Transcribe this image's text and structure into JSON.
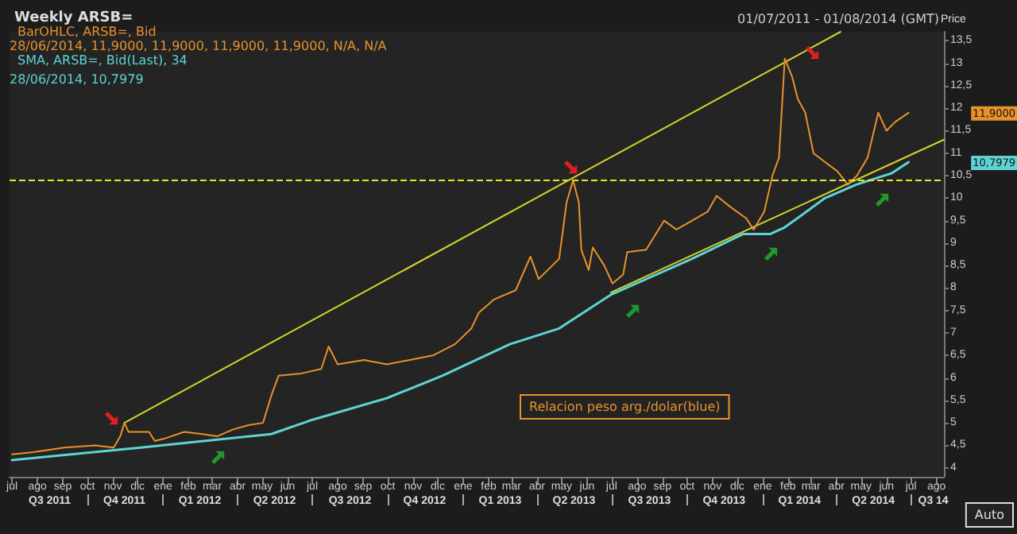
{
  "chart_data": {
    "type": "line",
    "title": "Weekly ARSB=",
    "subtitle": "01/07/2011 - 01/08/2014 (GMT)",
    "ylabel": "Price",
    "legend": "top left",
    "grid": false,
    "marker": "none",
    "xlim": [
      "2011-06-28",
      "2014-08-10"
    ],
    "xticks": [
      {
        "value": "2011-07-01",
        "label": "jul"
      },
      {
        "value": "2011-08-01",
        "label": "ago"
      },
      {
        "value": "2011-09-01",
        "label": "sep"
      },
      {
        "value": "2011-10-01",
        "label": "oct"
      },
      {
        "value": "2011-11-01",
        "label": "nov"
      },
      {
        "value": "2011-12-01",
        "label": "dic"
      },
      {
        "value": "2012-01-01",
        "label": "ene"
      },
      {
        "value": "2012-02-01",
        "label": "feb"
      },
      {
        "value": "2012-03-01",
        "label": "mar"
      },
      {
        "value": "2012-04-01",
        "label": "abr"
      },
      {
        "value": "2012-05-01",
        "label": "may"
      },
      {
        "value": "2012-06-01",
        "label": "jun"
      },
      {
        "value": "2012-07-01",
        "label": "jul"
      },
      {
        "value": "2012-08-01",
        "label": "ago"
      },
      {
        "value": "2012-09-01",
        "label": "sep"
      },
      {
        "value": "2012-10-01",
        "label": "oct"
      },
      {
        "value": "2012-11-01",
        "label": "nov"
      },
      {
        "value": "2012-12-01",
        "label": "dic"
      },
      {
        "value": "2013-01-01",
        "label": "ene"
      },
      {
        "value": "2013-02-01",
        "label": "feb"
      },
      {
        "value": "2013-03-01",
        "label": "mar"
      },
      {
        "value": "2013-04-01",
        "label": "abr"
      },
      {
        "value": "2013-05-01",
        "label": "may"
      },
      {
        "value": "2013-06-01",
        "label": "jun"
      },
      {
        "value": "2013-07-01",
        "label": "jul"
      },
      {
        "value": "2013-08-01",
        "label": "ago"
      },
      {
        "value": "2013-09-01",
        "label": "sep"
      },
      {
        "value": "2013-10-01",
        "label": "oct"
      },
      {
        "value": "2013-11-01",
        "label": "nov"
      },
      {
        "value": "2013-12-01",
        "label": "dic"
      },
      {
        "value": "2014-01-01",
        "label": "ene"
      },
      {
        "value": "2014-02-01",
        "label": "feb"
      },
      {
        "value": "2014-03-01",
        "label": "mar"
      },
      {
        "value": "2014-04-01",
        "label": "abr"
      },
      {
        "value": "2014-05-01",
        "label": "may"
      },
      {
        "value": "2014-06-01",
        "label": "jun"
      },
      {
        "value": "2014-07-01",
        "label": "jul"
      },
      {
        "value": "2014-08-01",
        "label": "ago"
      }
    ],
    "x2lim": [
      "2011-06-28",
      "2014-08-10"
    ],
    "x2ticks": [
      {
        "value": "2011-08-16",
        "label": "Q3 2011"
      },
      {
        "value": "2011-10-01",
        "label": null
      },
      {
        "value": "2011-11-15",
        "label": "Q4 2011"
      },
      {
        "value": "2012-01-01",
        "label": null
      },
      {
        "value": "2012-02-15",
        "label": "Q1 2012"
      },
      {
        "value": "2012-04-01",
        "label": null
      },
      {
        "value": "2012-05-16",
        "label": "Q2 2012"
      },
      {
        "value": "2012-07-01",
        "label": null
      },
      {
        "value": "2012-08-16",
        "label": "Q3 2012"
      },
      {
        "value": "2012-10-01",
        "label": null
      },
      {
        "value": "2012-11-15",
        "label": "Q4 2012"
      },
      {
        "value": "2013-01-01",
        "label": null
      },
      {
        "value": "2013-02-15",
        "label": "Q1 2013"
      },
      {
        "value": "2013-04-01",
        "label": null
      },
      {
        "value": "2013-05-16",
        "label": "Q2 2013"
      },
      {
        "value": "2013-07-01",
        "label": null
      },
      {
        "value": "2013-08-16",
        "label": "Q3 2013"
      },
      {
        "value": "2013-10-01",
        "label": null
      },
      {
        "value": "2013-11-15",
        "label": "Q4 2013"
      },
      {
        "value": "2014-01-01",
        "label": null
      },
      {
        "value": "2014-02-15",
        "label": "Q1 2014"
      },
      {
        "value": "2014-04-01",
        "label": null
      },
      {
        "value": "2014-05-16",
        "label": "Q2 2014"
      },
      {
        "value": "2014-07-01",
        "label": null
      },
      {
        "value": "2014-07-28",
        "label": "Q3 14"
      }
    ],
    "ylim": [
      3.8,
      13.7
    ],
    "yticks": [
      4,
      {
        "value": 4.5,
        "label": "4,5"
      },
      5,
      {
        "value": 5.5,
        "label": "5,5"
      },
      6,
      {
        "value": 6.5,
        "label": "6,5"
      },
      7,
      {
        "value": 7.5,
        "label": "7,5"
      },
      8,
      {
        "value": 8.5,
        "label": "8,5"
      },
      9,
      {
        "value": 9.5,
        "label": "9,5"
      },
      10,
      {
        "value": 10.5,
        "label": "10,5"
      },
      11,
      {
        "value": 11.5,
        "label": "11,5"
      },
      12,
      {
        "value": 12.5,
        "label": "12,5"
      },
      13,
      {
        "value": 13.5,
        "label": "13,5"
      }
    ],
    "series": [
      {
        "name": "BarOHLC, ARSB=, Bid",
        "color": "#e8922a",
        "x": [
          "2011-07-01",
          "2011-07-27",
          "2011-09-03",
          "2011-10-10",
          "2011-11-02",
          "2011-11-10",
          "2011-11-15",
          "2011-11-20",
          "2011-12-15",
          "2011-12-22",
          "2012-01-03",
          "2012-01-27",
          "2012-02-18",
          "2012-03-07",
          "2012-03-26",
          "2012-04-14",
          "2012-05-02",
          "2012-05-12",
          "2012-05-21",
          "2012-06-18",
          "2012-07-12",
          "2012-07-21",
          "2012-08-01",
          "2012-09-02",
          "2012-09-30",
          "2012-10-28",
          "2012-11-25",
          "2012-12-22",
          "2013-01-11",
          "2013-01-20",
          "2013-02-08",
          "2013-03-06",
          "2013-03-24",
          "2013-04-03",
          "2013-04-28",
          "2013-05-07",
          "2013-05-15",
          "2013-05-22",
          "2013-05-25",
          "2013-06-03",
          "2013-06-08",
          "2013-06-22",
          "2013-07-02",
          "2013-07-15",
          "2013-07-20",
          "2013-08-12",
          "2013-09-03",
          "2013-09-18",
          "2013-10-07",
          "2013-10-26",
          "2013-11-06",
          "2013-11-23",
          "2013-12-12",
          "2013-12-21",
          "2014-01-03",
          "2014-01-13",
          "2014-01-21",
          "2014-01-28",
          "2014-02-06",
          "2014-02-13",
          "2014-02-22",
          "2014-03-04",
          "2014-03-18",
          "2014-04-02",
          "2014-04-15",
          "2014-04-26",
          "2014-05-09",
          "2014-05-22",
          "2014-06-01",
          "2014-06-12",
          "2014-06-28"
        ],
        "values": [
          4.3,
          4.35,
          4.45,
          4.5,
          4.45,
          4.7,
          5.0,
          4.8,
          4.8,
          4.6,
          4.65,
          4.8,
          4.75,
          4.7,
          4.85,
          4.95,
          5.0,
          5.6,
          6.05,
          6.1,
          6.2,
          6.7,
          6.3,
          6.4,
          6.3,
          6.4,
          6.5,
          6.75,
          7.1,
          7.45,
          7.75,
          7.95,
          8.7,
          8.2,
          8.65,
          9.9,
          10.4,
          9.9,
          8.85,
          8.4,
          8.9,
          8.5,
          8.1,
          8.3,
          8.8,
          8.85,
          9.5,
          9.3,
          9.5,
          9.7,
          10.05,
          9.8,
          9.55,
          9.3,
          9.7,
          10.5,
          10.9,
          13.1,
          12.7,
          12.2,
          11.9,
          11.0,
          10.8,
          10.6,
          10.3,
          10.5,
          10.9,
          11.9,
          11.5,
          11.7,
          11.9
        ]
      },
      {
        "name": "SMA, ARSB=, Bid(Last), 34",
        "color": "#5fd3d3",
        "x": [
          "2011-07-01",
          "2011-12-05",
          "2012-05-12",
          "2012-06-28",
          "2012-09-30",
          "2012-12-07",
          "2013-02-27",
          "2013-04-28",
          "2013-06-30",
          "2013-10-07",
          "2013-12-08",
          "2014-01-10",
          "2014-01-28",
          "2014-02-16",
          "2014-03-18",
          "2014-04-25",
          "2014-06-07",
          "2014-06-28"
        ],
        "values": [
          4.17,
          4.45,
          4.75,
          5.05,
          5.55,
          6.05,
          6.75,
          7.1,
          7.85,
          8.65,
          9.2,
          9.2,
          9.35,
          9.6,
          10.0,
          10.3,
          10.55,
          10.8
        ]
      },
      {
        "color": "#d4d42a",
        "x": [
          "2011-11-15",
          "2014-04-06"
        ],
        "values": [
          5.0,
          13.7
        ]
      },
      {
        "color": "#d4d42a",
        "x": [
          "2013-06-30",
          "2014-08-10"
        ],
        "values": [
          7.9,
          11.3
        ]
      }
    ],
    "ref_lines": [
      {
        "axis": "y",
        "value": 10.4,
        "color": "#e6e62e",
        "line_style": "dashed"
      }
    ],
    "annotations": [
      "28/06/2014, 11,9000, 11,9000, 11,9000, 11,9000, N/A, N/A",
      "28/06/2014, 10,7979",
      "Relacion peso arg./dolar(blue)",
      "Auto",
      "11,9000",
      "10,7979"
    ]
  }
}
